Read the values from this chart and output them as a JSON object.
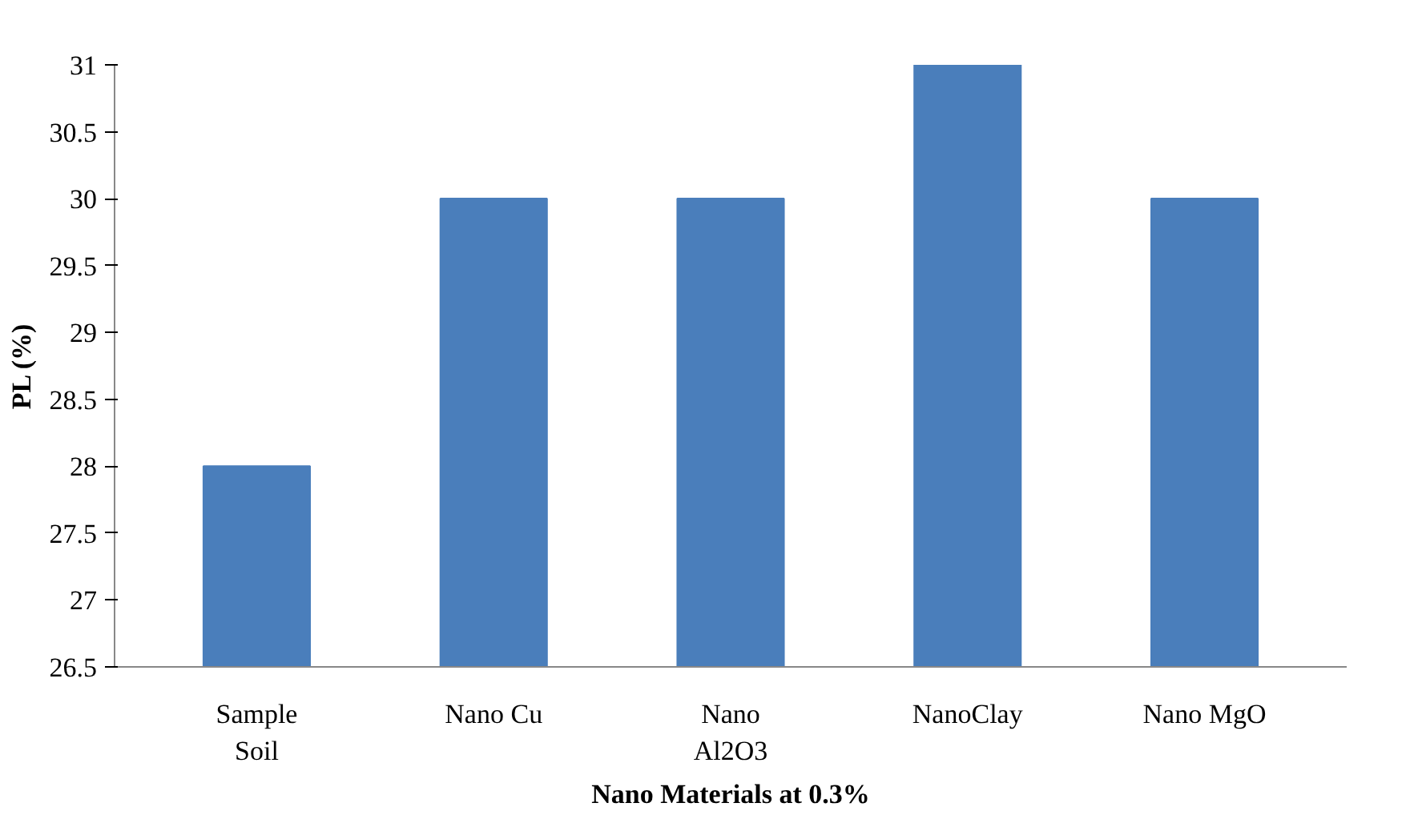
{
  "chart_data": {
    "type": "bar",
    "xlabel": "Nano Materials at 0.3%",
    "ylabel": "PL (%)",
    "categories": [
      "Sample\nSoil",
      "Nano Cu",
      "Nano\nAl2O3",
      "NanoClay",
      "Nano MgO"
    ],
    "values": [
      28,
      30,
      30,
      31,
      30
    ],
    "color": "#4a7ebb",
    "ylim": [
      26.5,
      31
    ],
    "yticks": [
      {
        "value": 26.5,
        "label": "26.5"
      },
      27,
      {
        "value": 27.5,
        "label": "27.5"
      },
      28,
      {
        "value": 28.5,
        "label": "28.5"
      },
      29,
      {
        "value": 29.5,
        "label": "29.5"
      },
      30,
      {
        "value": 30.5,
        "label": "30.5"
      },
      31
    ],
    "grid": false
  }
}
